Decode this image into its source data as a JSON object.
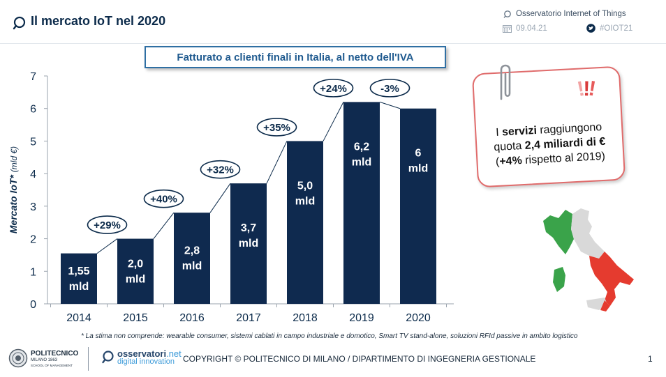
{
  "header": {
    "title": "Il mercato IoT nel 2020",
    "org": "Osservatorio Internet of Things",
    "date": "09.04.21",
    "hashtag": "#OIOT21"
  },
  "subtitle": "Fatturato a clienti finali in Italia, al netto dell'IVA",
  "note": {
    "exclamation": "!!!",
    "line1_a": "I ",
    "line1_b": "servizi",
    "line1_c": " raggiungono",
    "line2_a": "quota ",
    "line2_b": "2,4 miliardi di €",
    "line3_a": "(",
    "line3_b": "+4%",
    "line3_c": " rispetto al 2019)"
  },
  "footnote": "* La stima non comprende: wearable consumer, sistemi cablati in campo industriale e domotico, Smart TV stand-alone, soluzioni RFId passive in ambito logistico",
  "footer": {
    "polimi_name": "POLITECNICO",
    "polimi_sub": "MILANO 1863",
    "polimi_school": "SCHOOL OF MANAGEMENT",
    "oss_name": "osservatori",
    "oss_net": ".net",
    "oss_sub": "digital innovation",
    "copyright": "COPYRIGHT © POLITECNICO DI MILANO / DIPARTIMENTO DI INGEGNERIA GESTIONALE",
    "page": "1"
  },
  "colors": {
    "bar": "#0f2a4f",
    "title": "#0b2a4a",
    "accent": "#2f6fa3",
    "card_border": "#e06b6b",
    "italy_green": "#3aa34a",
    "italy_gray": "#d9d9d9",
    "italy_red": "#e53b2f"
  },
  "chart_data": {
    "type": "bar",
    "categories": [
      "2014",
      "2015",
      "2016",
      "2017",
      "2018",
      "2019",
      "2020"
    ],
    "values": [
      1.55,
      2.0,
      2.8,
      3.7,
      5.0,
      6.2,
      6.0
    ],
    "bar_labels": [
      [
        "1,55",
        "mld"
      ],
      [
        "2,0",
        "mld"
      ],
      [
        "2,8",
        "mld"
      ],
      [
        "3,7",
        "mld"
      ],
      [
        "5,0",
        "mld"
      ],
      [
        "6,2",
        "mld"
      ],
      [
        "6",
        "mld"
      ]
    ],
    "growth_labels": [
      "",
      "+29%",
      "+40%",
      "+32%",
      "+35%",
      "+24%",
      "-3%"
    ],
    "ylabel_bold": "Mercato IoT*",
    "ylabel_italic": "(mld €)",
    "ylim": [
      0,
      7
    ],
    "yticks": [
      0,
      1,
      2,
      3,
      4,
      5,
      6,
      7
    ],
    "grid": false
  }
}
